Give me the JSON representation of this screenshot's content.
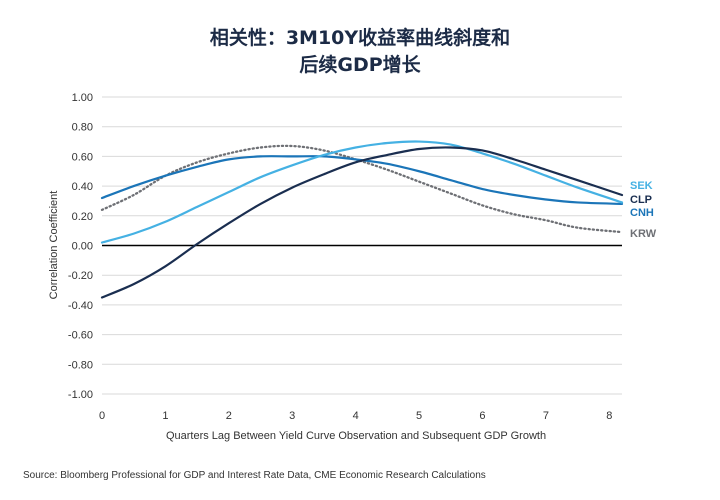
{
  "chart_data": {
    "type": "line",
    "title_lines": [
      "相关性：3M10Y收益率曲线斜度和",
      "后续GDP增长"
    ],
    "xlabel": "Quarters Lag Between Yield Curve Observation and Subsequent GDP Growth",
    "ylabel": "Correlation Coefficient",
    "xlim": [
      0,
      8.2
    ],
    "ylim": [
      -1.0,
      1.0
    ],
    "x_ticks": [
      "0",
      "1",
      "2",
      "3",
      "4",
      "5",
      "6",
      "7",
      "8"
    ],
    "y_ticks": [
      "1.00",
      "0.80",
      "0.60",
      "0.40",
      "0.20",
      "0.00",
      "-0.20",
      "-0.40",
      "-0.60",
      "-0.80",
      "-1.00"
    ],
    "grid": true,
    "legend_placement": "right-end labels",
    "series": [
      {
        "name": "SEK",
        "color": "#45b1e3",
        "style": "solid",
        "x": [
          0,
          0.5,
          1,
          1.5,
          2,
          2.5,
          3,
          3.5,
          4,
          4.5,
          5,
          5.5,
          6,
          6.5,
          7,
          7.5,
          8.2
        ],
        "y": [
          0.02,
          0.08,
          0.16,
          0.26,
          0.36,
          0.46,
          0.54,
          0.61,
          0.66,
          0.69,
          0.7,
          0.68,
          0.62,
          0.55,
          0.47,
          0.39,
          0.29
        ]
      },
      {
        "name": "CLP",
        "color": "#1a2e50",
        "style": "solid",
        "x": [
          0,
          0.5,
          1,
          1.5,
          2,
          2.5,
          3,
          3.5,
          4,
          4.5,
          5,
          5.5,
          6,
          6.5,
          7,
          7.5,
          8.2
        ],
        "y": [
          -0.35,
          -0.26,
          -0.14,
          0.01,
          0.15,
          0.28,
          0.39,
          0.48,
          0.56,
          0.61,
          0.65,
          0.66,
          0.64,
          0.58,
          0.51,
          0.44,
          0.34
        ]
      },
      {
        "name": "CNH",
        "color": "#1b75b8",
        "style": "solid",
        "x": [
          0,
          0.5,
          1,
          1.5,
          2,
          2.5,
          3,
          3.5,
          4,
          4.5,
          5,
          5.5,
          6,
          6.5,
          7,
          7.5,
          8.2
        ],
        "y": [
          0.32,
          0.4,
          0.47,
          0.53,
          0.58,
          0.6,
          0.6,
          0.6,
          0.58,
          0.55,
          0.5,
          0.44,
          0.38,
          0.34,
          0.31,
          0.29,
          0.28
        ]
      },
      {
        "name": "KRW",
        "color": "#6e7075",
        "style": "dotted",
        "x": [
          0,
          0.5,
          1,
          1.5,
          2,
          2.5,
          3,
          3.5,
          4,
          4.5,
          5,
          5.5,
          6,
          6.5,
          7,
          7.5,
          8.2
        ],
        "y": [
          0.24,
          0.34,
          0.47,
          0.56,
          0.62,
          0.66,
          0.67,
          0.64,
          0.58,
          0.51,
          0.43,
          0.35,
          0.27,
          0.21,
          0.17,
          0.12,
          0.09
        ]
      }
    ],
    "source": "Source: Bloomberg Professional for GDP and Interest Rate Data, CME Economic Research Calculations"
  }
}
